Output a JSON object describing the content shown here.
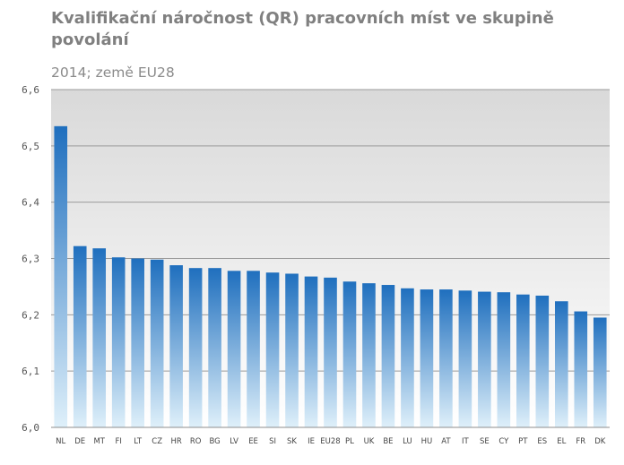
{
  "chart_data": {
    "type": "bar",
    "title": "Kvalifikační náročnost (QR) pracovních míst ve skupině povolání",
    "subtitle": "2014; země EU28",
    "xlabel": "",
    "ylabel": "",
    "ylim": [
      6.0,
      6.6
    ],
    "yticks": [
      "6,0",
      "6,1",
      "6,2",
      "6,3",
      "6,4",
      "6,5",
      "6,6"
    ],
    "categories": [
      "NL",
      "DE",
      "MT",
      "FI",
      "LT",
      "CZ",
      "HR",
      "RO",
      "BG",
      "LV",
      "EE",
      "SI",
      "SK",
      "IE",
      "EU28",
      "PL",
      "UK",
      "BE",
      "LU",
      "HU",
      "AT",
      "IT",
      "SE",
      "CY",
      "PT",
      "ES",
      "EL",
      "FR",
      "DK"
    ],
    "values": [
      6.535,
      6.322,
      6.318,
      6.302,
      6.3,
      6.298,
      6.288,
      6.283,
      6.283,
      6.278,
      6.278,
      6.275,
      6.273,
      6.268,
      6.266,
      6.259,
      6.256,
      6.253,
      6.247,
      6.245,
      6.245,
      6.243,
      6.241,
      6.24,
      6.236,
      6.234,
      6.224,
      6.206,
      6.195
    ],
    "grid": true,
    "legend": "none",
    "colors": {
      "bar_top": "#1f6fbe",
      "bar_bottom": "#dff0fa",
      "plot_bg_top": "#d9d9d9",
      "plot_bg_bottom": "#ffffff",
      "gridline": "#9a9a9a"
    }
  }
}
